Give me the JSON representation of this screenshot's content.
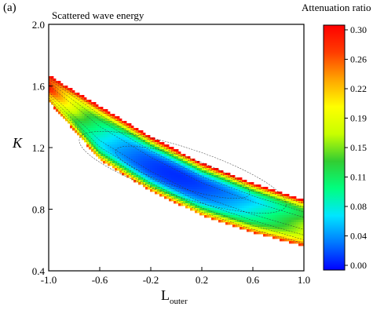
{
  "panel_label": "(a)",
  "chart_data": {
    "type": "heatmap",
    "title": "Scattered wave energy",
    "xlabel": "L",
    "xlabel_subscript": "outer",
    "ylabel": "K",
    "xlim": [
      -1.0,
      1.0
    ],
    "ylim": [
      0.4,
      2.0
    ],
    "x_ticks": [
      "-1.0",
      "-0.6",
      "-0.2",
      "0.2",
      "0.6",
      "1.0"
    ],
    "y_ticks": [
      "0.4",
      "0.8",
      "1.2",
      "1.6",
      "2.0"
    ],
    "colorbar": {
      "title": "Attenuation ratio",
      "min": 0.0,
      "max": 0.3,
      "ticks": [
        "0.30",
        "0.26",
        "0.22",
        "0.19",
        "0.15",
        "0.11",
        "0.08",
        "0.04",
        "0.00"
      ],
      "colors": [
        "#0000ff",
        "#0078ff",
        "#00e6ff",
        "#00ff7f",
        "#32cd32",
        "#c8ff00",
        "#ffff00",
        "#ffa500",
        "#ff3c00",
        "#ff0000"
      ]
    },
    "region": {
      "x": [
        -1.0,
        -0.6,
        -0.2,
        0.2,
        0.6,
        1.0
      ],
      "k_upper": [
        1.67,
        1.47,
        1.27,
        1.1,
        0.97,
        0.86
      ],
      "k_lower": [
        1.5,
        1.12,
        0.92,
        0.76,
        0.65,
        0.56
      ]
    },
    "minimum": {
      "x": 0.05,
      "k": 1.04,
      "value": 0.0
    },
    "contours": true,
    "grid": false,
    "legend": "colorbar-right"
  }
}
